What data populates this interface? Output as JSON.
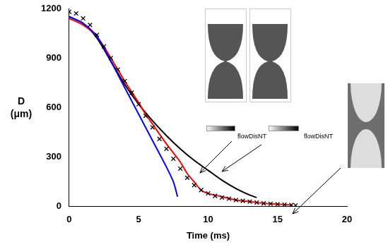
{
  "chart_data": {
    "type": "line",
    "x_label": "Time (ms)",
    "y_label": "D (μm)",
    "xlim": [
      0,
      20
    ],
    "xticks": [
      0,
      5,
      10,
      15,
      20
    ],
    "ylim": [
      0,
      1200
    ],
    "yticks": [
      0,
      300,
      600,
      900,
      1200
    ],
    "grid": false,
    "annotations": [
      "flowDisNT",
      "flowDisNT"
    ],
    "series": [
      {
        "color": "#000000",
        "marker": "cross",
        "line_style": "none",
        "x": [
          0,
          0.5,
          1,
          1.5,
          2,
          2.5,
          3,
          3.5,
          4,
          4.5,
          5,
          5.5,
          6,
          6.5,
          7,
          7.5,
          8,
          8.5,
          9,
          9.5,
          10,
          10.5,
          11,
          11.5,
          12,
          12.5,
          13,
          13.5,
          14,
          14.5,
          15,
          15.5,
          16,
          16.3
        ],
        "values": [
          1180,
          1170,
          1140,
          1100,
          1040,
          970,
          900,
          830,
          760,
          690,
          620,
          550,
          480,
          410,
          350,
          290,
          230,
          175,
          130,
          100,
          80,
          65,
          55,
          48,
          40,
          35,
          30,
          25,
          20,
          17,
          14,
          12,
          10,
          8
        ]
      },
      {
        "color": "#0000ff",
        "marker": "none",
        "line_style": "solid",
        "x": [
          0,
          1,
          2,
          3,
          4,
          5,
          6,
          7,
          7.5,
          7.8
        ],
        "values": [
          1150,
          1110,
          1030,
          880,
          720,
          560,
          400,
          240,
          150,
          60
        ]
      },
      {
        "color": "#ff0000",
        "marker": "none",
        "line_style": "solid",
        "x": [
          0,
          1,
          2,
          3,
          4,
          5,
          5.5,
          6,
          7,
          8,
          8.5,
          9,
          9.5,
          10,
          11,
          12,
          13,
          14,
          15,
          16
        ],
        "values": [
          1140,
          1100,
          1030,
          900,
          760,
          630,
          560,
          500,
          380,
          270,
          200,
          150,
          100,
          80,
          60,
          40,
          30,
          20,
          15,
          10
        ]
      },
      {
        "color": "#000000",
        "marker": "none",
        "line_style": "solid",
        "x": [
          0,
          1,
          2,
          3,
          4,
          5,
          6,
          7,
          8,
          9,
          10,
          11,
          12,
          13,
          13.5
        ],
        "values": [
          1150,
          1110,
          1020,
          880,
          740,
          620,
          520,
          430,
          350,
          280,
          220,
          160,
          110,
          70,
          55
        ]
      }
    ]
  }
}
